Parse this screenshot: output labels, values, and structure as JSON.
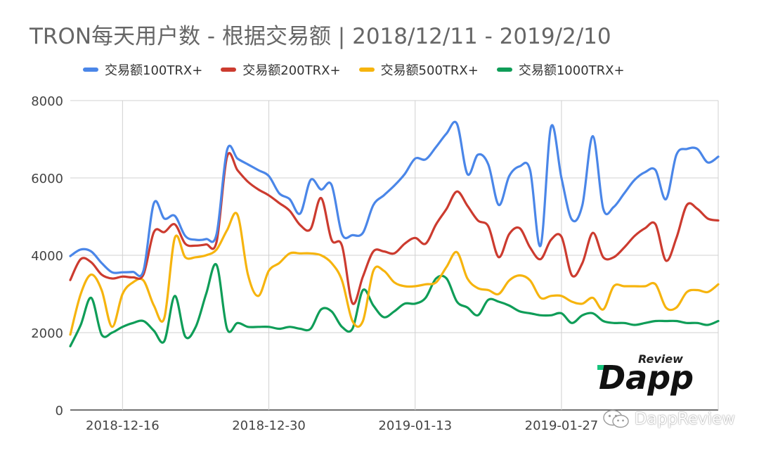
{
  "chart_data": {
    "type": "line",
    "title": "TRON每天用户数 - 根据交易额 | 2018/12/11 - 2019/2/10",
    "xlabel": "",
    "ylabel": "",
    "ylim": [
      0,
      8000
    ],
    "yticks": [
      "0",
      "2000",
      "4000",
      "6000",
      "8000"
    ],
    "xticks": [
      "2018-12-16",
      "2018-12-30",
      "2019-01-13",
      "2019-01-27"
    ],
    "x_start": "2018-12-11",
    "grid": true,
    "legend_position": "top",
    "series": [
      {
        "name": "交易额100TRX+",
        "color": "#4a86e8",
        "values": [
          3980,
          4150,
          4100,
          3800,
          3560,
          3560,
          3570,
          3600,
          5350,
          4950,
          5020,
          4500,
          4400,
          4420,
          4550,
          6720,
          6500,
          6350,
          6200,
          6050,
          5600,
          5450,
          5080,
          5950,
          5700,
          5820,
          4550,
          4520,
          4580,
          5300,
          5550,
          5800,
          6100,
          6500,
          6480,
          6800,
          7150,
          7400,
          6100,
          6600,
          6350,
          5300,
          6050,
          6300,
          6200,
          4250,
          7320,
          6000,
          4920,
          5300,
          7080,
          5200,
          5250,
          5600,
          5950,
          6150,
          6200,
          5450,
          6600,
          6750,
          6750,
          6400,
          6550
        ]
      },
      {
        "name": "交易额200TRX+",
        "color": "#cc3b2f",
        "values": [
          3360,
          3900,
          3820,
          3500,
          3400,
          3450,
          3430,
          3500,
          4600,
          4600,
          4800,
          4300,
          4250,
          4280,
          4350,
          6550,
          6200,
          5900,
          5700,
          5550,
          5350,
          5150,
          4780,
          4680,
          5480,
          4400,
          4250,
          2760,
          3450,
          4100,
          4100,
          4050,
          4300,
          4450,
          4300,
          4800,
          5200,
          5650,
          5280,
          4900,
          4750,
          3950,
          4550,
          4700,
          4200,
          3900,
          4400,
          4480,
          3480,
          3800,
          4580,
          3950,
          3950,
          4200,
          4500,
          4700,
          4800,
          3860,
          4450,
          5300,
          5200,
          4950,
          4900
        ]
      },
      {
        "name": "交易额500TRX+",
        "color": "#f6b40e",
        "values": [
          1950,
          3000,
          3500,
          3100,
          2150,
          3000,
          3300,
          3350,
          2700,
          2380,
          4450,
          3950,
          3950,
          4000,
          4150,
          4650,
          5050,
          3500,
          2950,
          3600,
          3800,
          4050,
          4050,
          4050,
          4000,
          3800,
          3350,
          2300,
          2300,
          3600,
          3600,
          3300,
          3200,
          3200,
          3250,
          3300,
          3700,
          4080,
          3400,
          3150,
          3100,
          3000,
          3350,
          3480,
          3350,
          2900,
          2950,
          2950,
          2800,
          2750,
          2900,
          2600,
          3200,
          3200,
          3200,
          3200,
          3250,
          2650,
          2650,
          3050,
          3100,
          3050,
          3250
        ]
      },
      {
        "name": "交易额1000TRX+",
        "color": "#0f9d58",
        "values": [
          1650,
          2200,
          2900,
          1950,
          2000,
          2150,
          2250,
          2300,
          2050,
          1780,
          2950,
          1900,
          2150,
          3000,
          3750,
          2100,
          2250,
          2150,
          2150,
          2150,
          2100,
          2150,
          2100,
          2100,
          2600,
          2550,
          2150,
          2100,
          3100,
          2700,
          2400,
          2550,
          2750,
          2750,
          2900,
          3400,
          3400,
          2800,
          2650,
          2450,
          2850,
          2800,
          2700,
          2550,
          2500,
          2450,
          2450,
          2500,
          2250,
          2450,
          2500,
          2300,
          2250,
          2250,
          2200,
          2250,
          2300,
          2300,
          2300,
          2250,
          2250,
          2200,
          2300
        ]
      }
    ]
  },
  "watermark": {
    "label": "DappReview",
    "icon": "wechat-icon"
  },
  "logo": {
    "word": "Dapp",
    "tag": "Review",
    "accent": "#16c37c"
  }
}
